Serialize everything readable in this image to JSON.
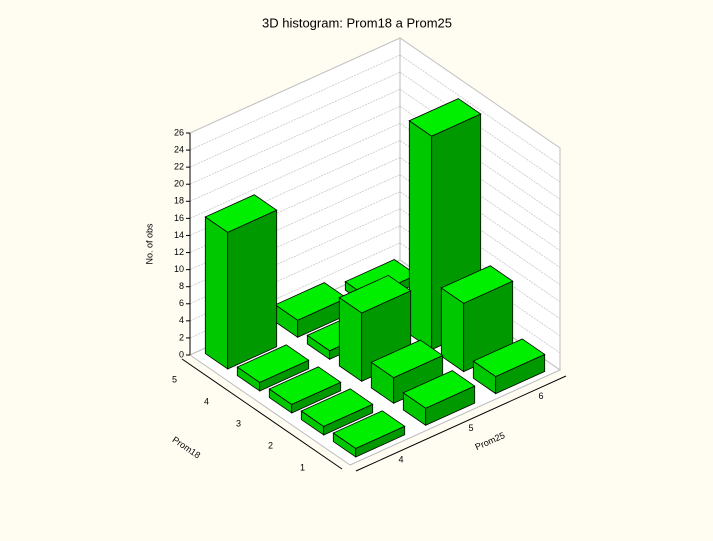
{
  "chart_data": {
    "type": "bar3d",
    "title": "3D histogram: Prom18  a Prom25",
    "row_label": "Prom18",
    "col_label": "Prom25",
    "z_label": "No. of obs",
    "row_categories": [
      "1",
      "2",
      "3",
      "4",
      "5"
    ],
    "col_categories": [
      "4",
      "5",
      "6"
    ],
    "values": [
      [
        1,
        2,
        2
      ],
      [
        1,
        3,
        8
      ],
      [
        1,
        8,
        25
      ],
      [
        1,
        1,
        1
      ],
      [
        16,
        2,
        1
      ]
    ],
    "color": "#00ee00",
    "zlim": [
      0,
      26
    ],
    "zticks": [
      0,
      2,
      4,
      6,
      8,
      10,
      12,
      14,
      16,
      18,
      20,
      22,
      24,
      26
    ],
    "grid": true
  }
}
